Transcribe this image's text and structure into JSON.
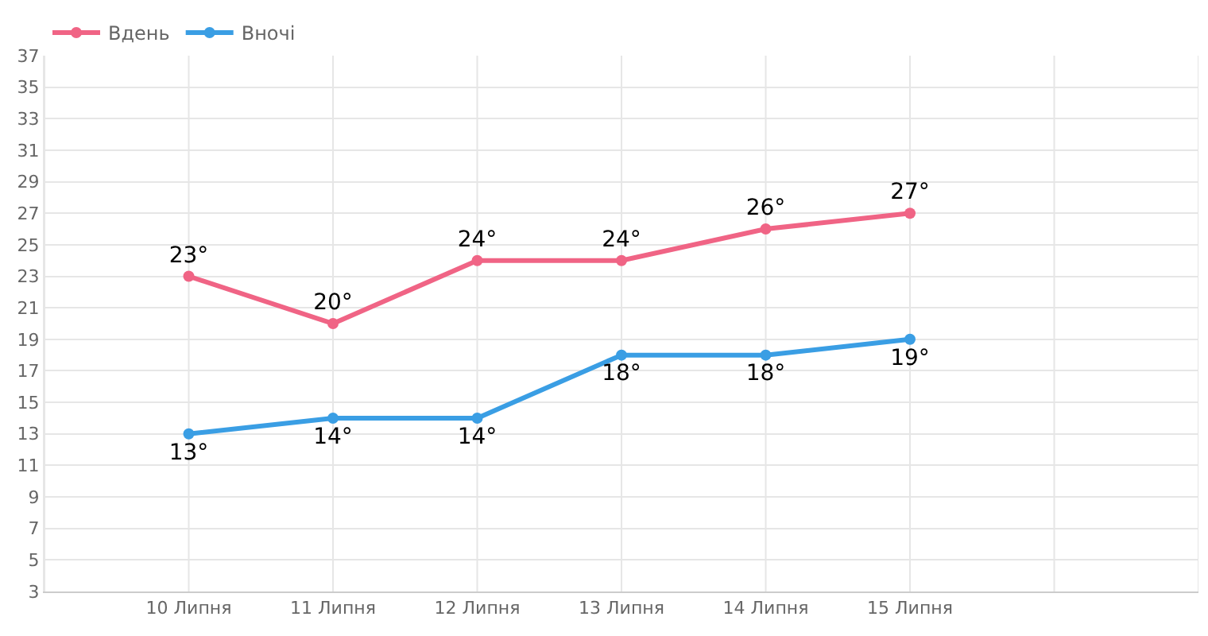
{
  "chart_data": {
    "type": "line",
    "categories": [
      null,
      "10 Липня",
      "11 Липня",
      "12 Липня",
      "13 Липня",
      "14 Липня",
      "15 Липня",
      null,
      null
    ],
    "series": [
      {
        "name": "Вдень",
        "color": "#f06485",
        "values": [
          null,
          23,
          20,
          24,
          24,
          26,
          27,
          null,
          null
        ],
        "value_labels": [
          null,
          "23°",
          "20°",
          "24°",
          "24°",
          "26°",
          "27°",
          null,
          null
        ]
      },
      {
        "name": "Вночі",
        "color": "#3a9ee4",
        "values": [
          null,
          13,
          14,
          14,
          18,
          18,
          19,
          null,
          null
        ],
        "value_labels": [
          null,
          "13°",
          "14°",
          "14°",
          "18°",
          "18°",
          "19°",
          null,
          null
        ]
      }
    ],
    "ylim": [
      3,
      37
    ],
    "yticks": [
      3,
      5,
      7,
      9,
      11,
      13,
      15,
      17,
      19,
      21,
      23,
      25,
      27,
      29,
      31,
      33,
      35,
      37
    ],
    "grid": true,
    "legend": "top left",
    "marker": "circle",
    "line_style": "solid"
  }
}
